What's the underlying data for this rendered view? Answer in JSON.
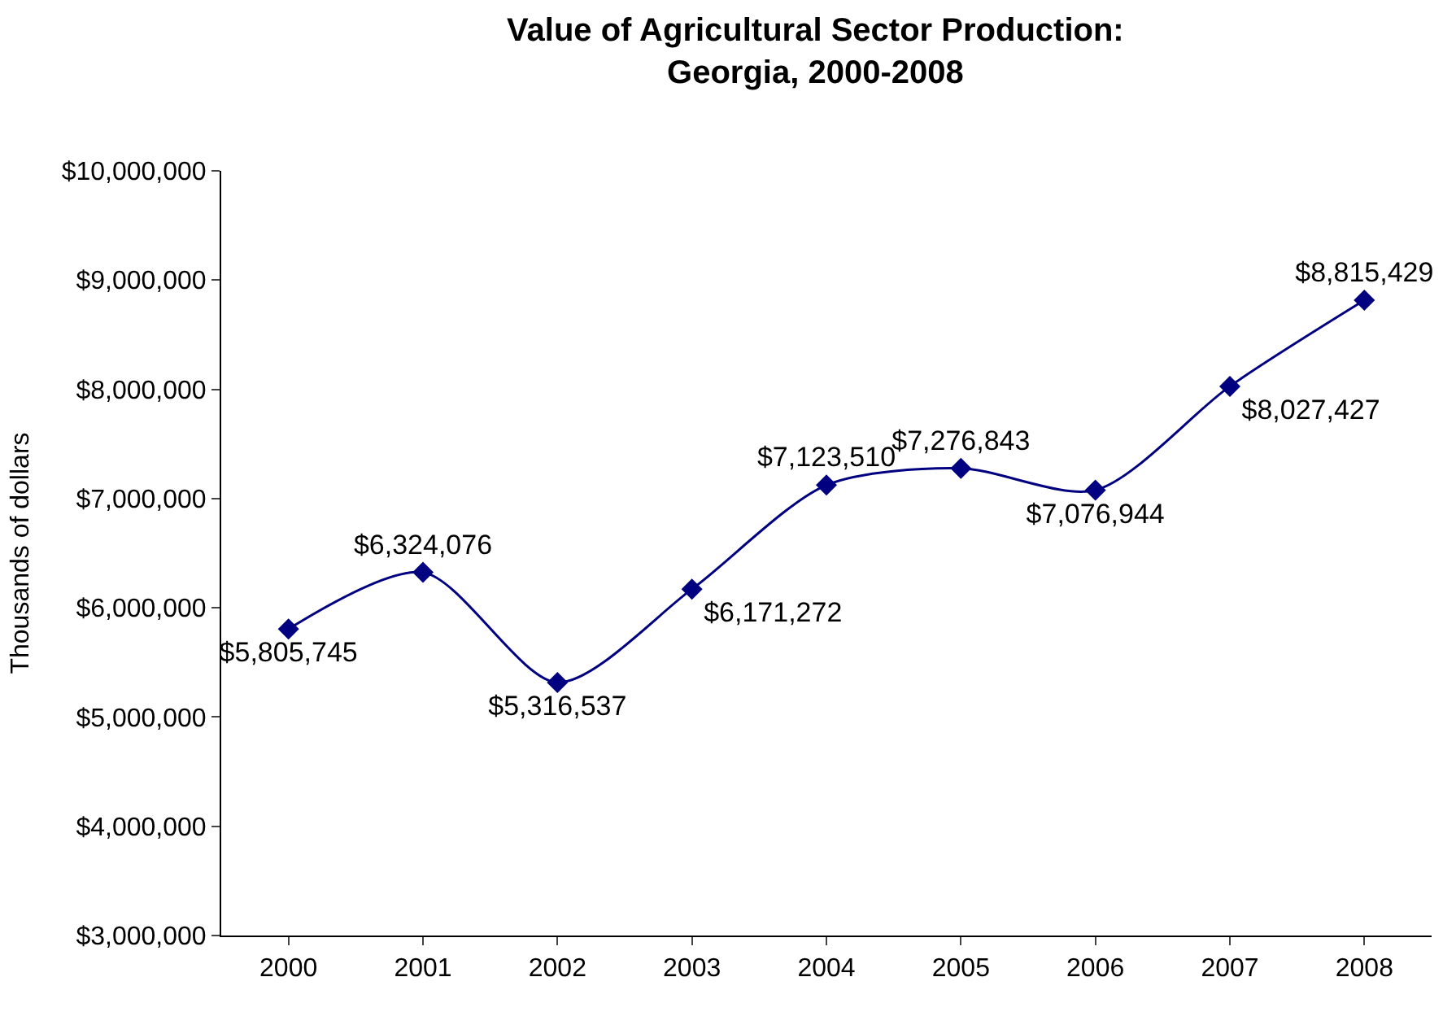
{
  "chart_data": {
    "type": "line",
    "title": "Value of Agricultural Sector Production:\nGeorgia, 2000-2008",
    "ylabel": "Thousands of dollars",
    "categories": [
      "2000",
      "2001",
      "2002",
      "2003",
      "2004",
      "2005",
      "2006",
      "2007",
      "2008"
    ],
    "series": [
      {
        "color": "#000080",
        "values": [
          5805745,
          6324076,
          5316537,
          6171272,
          7123510,
          7276843,
          7076944,
          8027427,
          8815429
        ],
        "value_labels": [
          "$5,805,745",
          "$6,324,076",
          "$5,316,537",
          "$6,171,272",
          "$7,123,510",
          "$7,276,843",
          "$7,076,944",
          "$8,027,427",
          "$8,815,429"
        ]
      }
    ],
    "ylim": [
      3000000,
      10000000
    ],
    "yticks": [
      {
        "value": 3000000,
        "label": "$3,000,000"
      },
      {
        "value": 4000000,
        "label": "$4,000,000"
      },
      {
        "value": 5000000,
        "label": "$5,000,000"
      },
      {
        "value": 6000000,
        "label": "$6,000,000"
      },
      {
        "value": 7000000,
        "label": "$7,000,000"
      },
      {
        "value": 8000000,
        "label": "$8,000,000"
      },
      {
        "value": 9000000,
        "label": "$9,000,000"
      },
      {
        "value": 10000000,
        "label": "$10,000,000"
      }
    ],
    "grid": false,
    "legend": false,
    "marker": "diamond",
    "line_style": "solid"
  }
}
